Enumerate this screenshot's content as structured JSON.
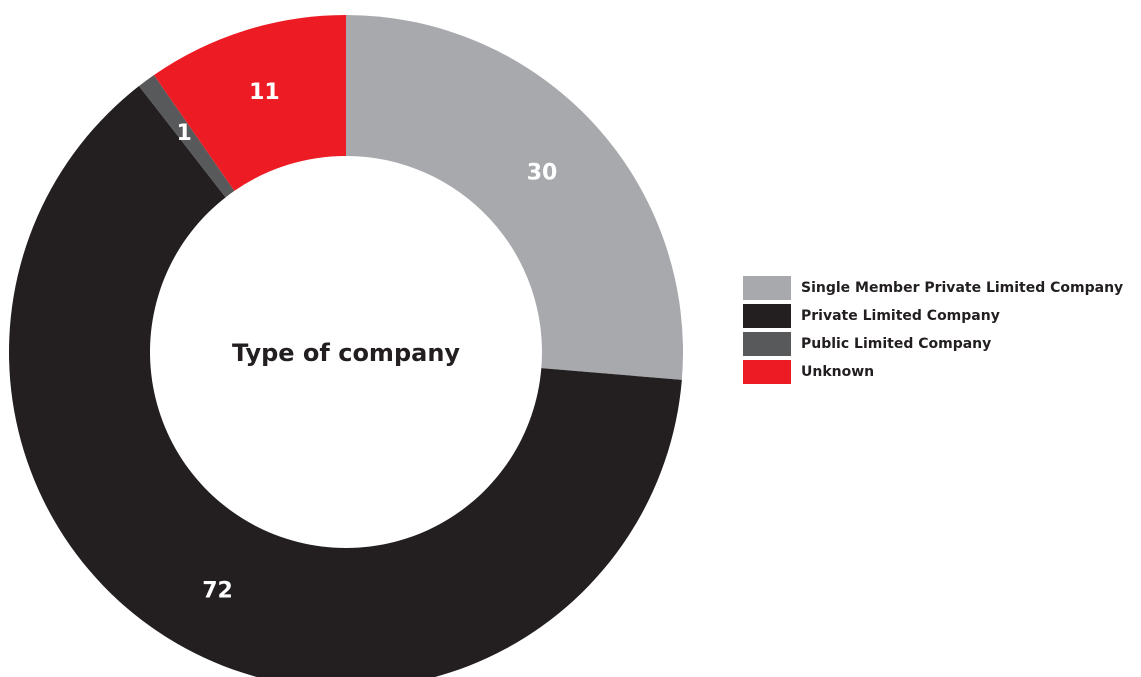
{
  "chart_data": {
    "type": "pie",
    "variant": "donut",
    "title": "Type of company",
    "categories": [
      "Single Member Private Limited Company",
      "Private Limited Company",
      "Public Limited Company",
      "Unknown"
    ],
    "values": [
      30,
      72,
      1,
      11
    ],
    "value_labels": [
      "30",
      "72",
      "1",
      "11"
    ],
    "colors": [
      "#a7a9ac",
      "#231f20",
      "#58595b",
      "#ed1c24"
    ],
    "legend_position": "right",
    "start_angle": "top",
    "direction": "clockwise"
  }
}
